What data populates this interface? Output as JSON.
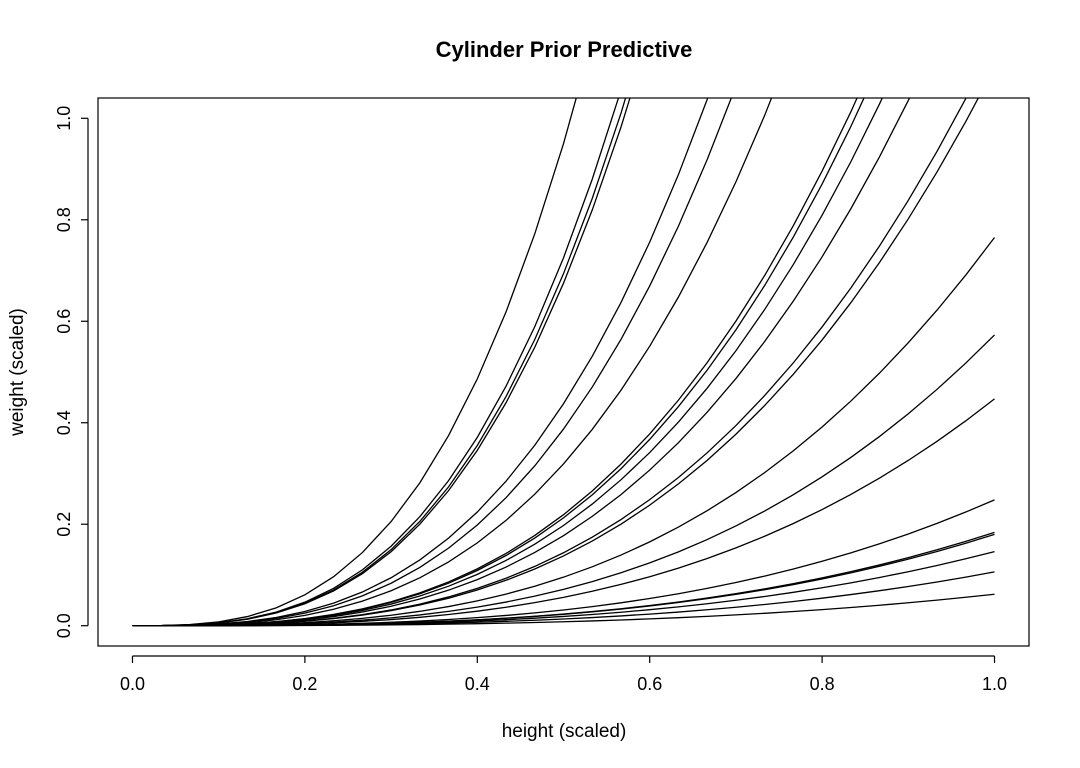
{
  "chart_data": {
    "type": "line",
    "title": "Cylinder Prior Predictive",
    "xlabel": "height (scaled)",
    "ylabel": "weight (scaled)",
    "xlim": [
      -0.04,
      1.04
    ],
    "ylim": [
      -0.04,
      1.04
    ],
    "xticks": [
      0.0,
      0.2,
      0.4,
      0.6,
      0.8,
      1.0
    ],
    "xtick_labels": [
      "0.0",
      "0.2",
      "0.4",
      "0.6",
      "0.8",
      "1.0"
    ],
    "yticks": [
      0.0,
      0.2,
      0.4,
      0.6,
      0.8,
      1.0
    ],
    "ytick_labels": [
      "0.0",
      "0.2",
      "0.4",
      "0.6",
      "0.8",
      "1.0"
    ],
    "grid": false,
    "x_domain": [
      0.0,
      1.0
    ],
    "curve_form": "y = k * x^3",
    "series": [
      {
        "k": 7.6
      },
      {
        "k": 5.8
      },
      {
        "k": 5.55
      },
      {
        "k": 5.4
      },
      {
        "k": 3.5
      },
      {
        "k": 3.1
      },
      {
        "k": 2.55
      },
      {
        "k": 1.75
      },
      {
        "k": 1.7
      },
      {
        "k": 1.58
      },
      {
        "k": 1.42
      },
      {
        "k": 1.15
      },
      {
        "k": 1.1
      },
      {
        "k": 0.765
      },
      {
        "k": 0.573
      },
      {
        "k": 0.447
      },
      {
        "k": 0.248
      },
      {
        "k": 0.184
      },
      {
        "k": 0.18
      },
      {
        "k": 0.146
      },
      {
        "k": 0.106
      },
      {
        "k": 0.062
      }
    ]
  }
}
